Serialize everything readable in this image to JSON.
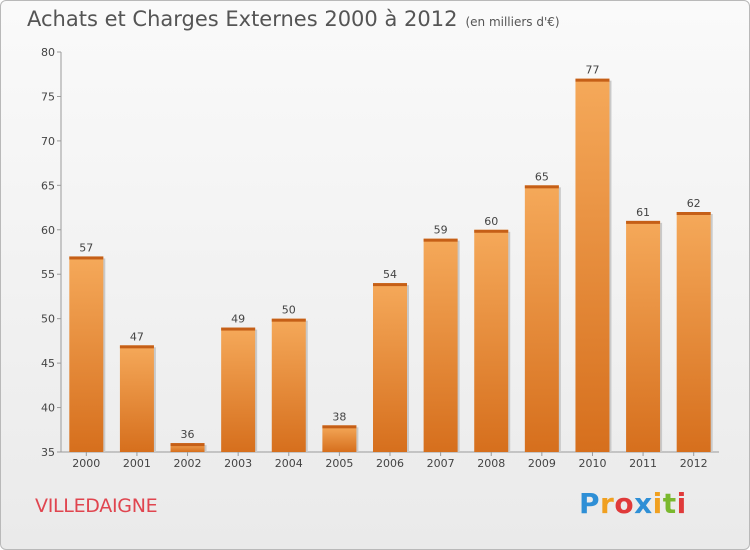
{
  "chart_data": {
    "type": "bar",
    "title": "Achats et Charges Externes 2000 à 2012",
    "subtitle": "(en milliers d'€)",
    "categories": [
      "2000",
      "2001",
      "2002",
      "2003",
      "2004",
      "2005",
      "2006",
      "2007",
      "2008",
      "2009",
      "2010",
      "2011",
      "2012"
    ],
    "values": [
      57,
      47,
      36,
      49,
      50,
      38,
      54,
      59,
      60,
      65,
      77,
      61,
      62
    ],
    "ylim": [
      35,
      80
    ],
    "yticks": [
      35,
      40,
      45,
      50,
      55,
      60,
      65,
      70,
      75,
      80
    ],
    "xlabel": "",
    "ylabel": "",
    "grid": false,
    "bar_color": "#e8842e",
    "bar_color_light": "#f5a95a",
    "bar_color_dark": "#d66f1d"
  },
  "footer": {
    "commune": "VILLEDAIGNE",
    "brand_letters": [
      "P",
      "r",
      "o",
      "x",
      "i",
      "t",
      "i"
    ],
    "brand_colors": [
      "#2e8fd6",
      "#f0a020",
      "#e03a3a",
      "#2e8fd6",
      "#f0a020",
      "#7ab82e",
      "#e03a3a"
    ]
  }
}
